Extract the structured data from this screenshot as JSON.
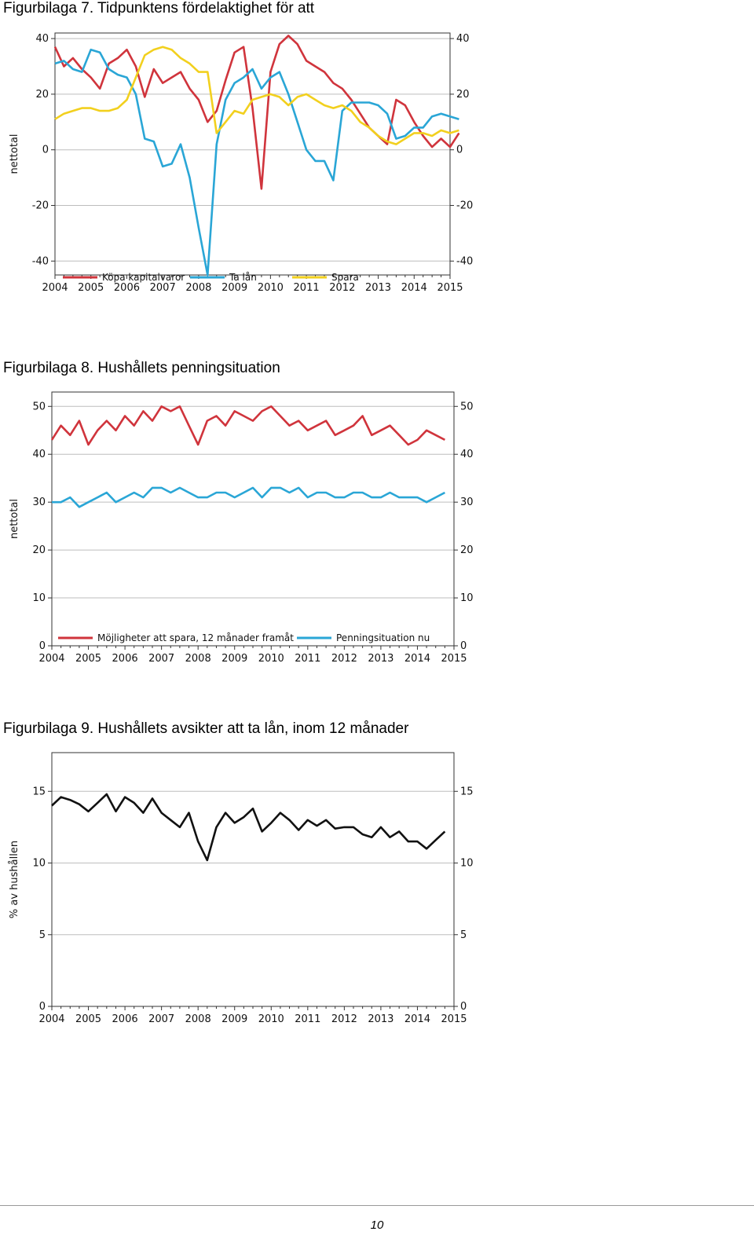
{
  "titles": {
    "fig7": "Figurbilaga 7. Tidpunktens fördelaktighet för att",
    "fig8": "Figurbilaga 8. Hushållets penningsituation",
    "fig9": "Figurbilaga 9. Hushållets avsikter att ta lån, inom 12 månader"
  },
  "page_number": "10",
  "chart_data": [
    {
      "type": "line",
      "ylabel": "nettotal",
      "xlim": [
        2004,
        2015
      ],
      "ylim": [
        -45,
        42
      ],
      "yticks": [
        -40,
        -20,
        0,
        20,
        40
      ],
      "xticks": [
        "2004",
        "2005",
        "2006",
        "2007",
        "2008",
        "2009",
        "2010",
        "2011",
        "2012",
        "2013",
        "2014",
        "2015"
      ],
      "grid": true,
      "legend": "bottom-inside",
      "x_start": 2004.0,
      "x_step": 0.25,
      "series": [
        {
          "name": "Köpa kapitalvaror",
          "color": "#d0343c",
          "values": [
            37,
            30,
            33,
            29,
            26,
            22,
            31,
            33,
            36,
            30,
            19,
            29,
            24,
            26,
            28,
            22,
            18,
            10,
            14,
            25,
            35,
            37,
            15,
            -14,
            28,
            38,
            41,
            38,
            32,
            30,
            28,
            24,
            22,
            18,
            13,
            8,
            5,
            2,
            18,
            16,
            10,
            5,
            1,
            4,
            1,
            6
          ]
        },
        {
          "name": "Ta lån",
          "color": "#2aa6d6",
          "values": [
            31,
            32,
            29,
            28,
            36,
            35,
            29,
            27,
            26,
            20,
            4,
            3,
            -6,
            -5,
            2,
            -10,
            -28,
            -45,
            2,
            18,
            24,
            26,
            29,
            22,
            26,
            28,
            20,
            10,
            0,
            -4,
            -4,
            -11,
            14,
            17,
            17,
            17,
            16,
            13,
            4,
            5,
            8,
            8,
            12,
            13,
            12,
            11
          ]
        },
        {
          "name": "Spara",
          "color": "#f2d01e",
          "values": [
            11,
            13,
            14,
            15,
            15,
            14,
            14,
            15,
            18,
            26,
            34,
            36,
            37,
            36,
            33,
            31,
            28,
            28,
            6,
            10,
            14,
            13,
            18,
            19,
            20,
            19,
            16,
            19,
            20,
            18,
            16,
            15,
            16,
            14,
            10,
            8,
            5,
            3,
            2,
            4,
            6,
            6,
            5,
            7,
            6,
            7
          ]
        }
      ]
    },
    {
      "type": "line",
      "ylabel": "nettotal",
      "xlim": [
        2004,
        2015
      ],
      "ylim": [
        0,
        53
      ],
      "yticks": [
        0,
        10,
        20,
        30,
        40,
        50
      ],
      "xticks": [
        "2004",
        "2005",
        "2006",
        "2007",
        "2008",
        "2009",
        "2010",
        "2011",
        "2012",
        "2013",
        "2014",
        "2015"
      ],
      "grid": true,
      "legend": "bottom-inside",
      "x_start": 2004.0,
      "x_step": 0.25,
      "series": [
        {
          "name": "Möjligheter att spara, 12 månader framåt",
          "color": "#d0343c",
          "values": [
            43,
            46,
            44,
            47,
            42,
            45,
            47,
            45,
            48,
            46,
            49,
            47,
            50,
            49,
            50,
            46,
            42,
            47,
            48,
            46,
            49,
            48,
            47,
            49,
            50,
            48,
            46,
            47,
            45,
            46,
            47,
            44,
            45,
            46,
            48,
            44,
            45,
            46,
            44,
            42,
            43,
            45,
            44,
            43
          ]
        },
        {
          "name": "Penningsituation nu",
          "color": "#2aa6d6",
          "values": [
            30,
            30,
            31,
            29,
            30,
            31,
            32,
            30,
            31,
            32,
            31,
            33,
            33,
            32,
            33,
            32,
            31,
            31,
            32,
            32,
            31,
            32,
            33,
            31,
            33,
            33,
            32,
            33,
            31,
            32,
            32,
            31,
            31,
            32,
            32,
            31,
            31,
            32,
            31,
            31,
            31,
            30,
            31,
            32
          ]
        }
      ]
    },
    {
      "type": "line",
      "ylabel": "% av hushållen",
      "xlim": [
        2004,
        2015
      ],
      "ylim": [
        0,
        17.7
      ],
      "yticks": [
        0,
        5,
        10,
        15
      ],
      "xticks": [
        "2004",
        "2005",
        "2006",
        "2007",
        "2008",
        "2009",
        "2010",
        "2011",
        "2012",
        "2013",
        "2014",
        "2015"
      ],
      "grid": true,
      "x_start": 2004.0,
      "x_step": 0.25,
      "series": [
        {
          "name": "",
          "color": "#111111",
          "values": [
            14,
            14.6,
            14.4,
            14.1,
            13.6,
            14.2,
            14.8,
            13.6,
            14.6,
            14.2,
            13.5,
            14.5,
            13.5,
            13.0,
            12.5,
            13.5,
            11.5,
            10.2,
            12.5,
            13.5,
            12.8,
            13.2,
            13.8,
            12.2,
            12.8,
            13.5,
            13.0,
            12.3,
            13.0,
            12.6,
            13.0,
            12.4,
            12.5,
            12.5,
            12.0,
            11.8,
            12.5,
            11.8,
            12.2,
            11.5,
            11.5,
            11.0,
            11.6,
            12.2
          ]
        }
      ]
    }
  ]
}
